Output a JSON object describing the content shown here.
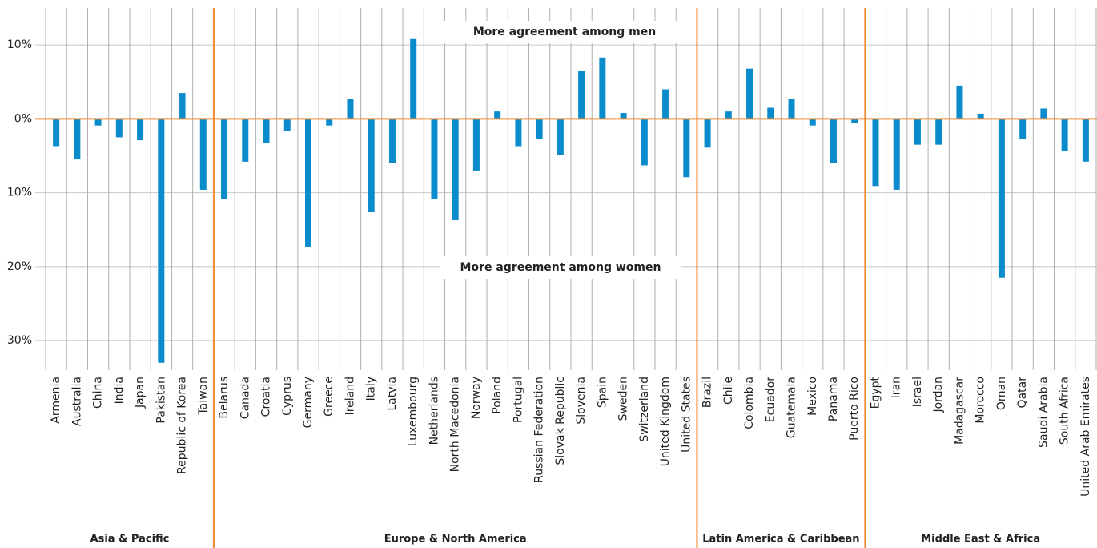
{
  "chart_data": {
    "type": "bar",
    "color": "#0a8ccc",
    "zero_line_color": "#f28a30",
    "ylim": [
      -34,
      15
    ],
    "yticks": [
      {
        "value": 10,
        "label": "10%"
      },
      {
        "value": 0,
        "label": "0%"
      },
      {
        "value": -10,
        "label": "10%"
      },
      {
        "value": -20,
        "label": "20%"
      },
      {
        "value": -30,
        "label": "30%"
      }
    ],
    "grid": true,
    "annotations": [
      "More agreement among men",
      "More agreement among women"
    ],
    "groups": [
      {
        "name": "Asia & Pacific",
        "categories": [
          "Armenia",
          "Australia",
          "China",
          "India",
          "Japan",
          "Pakistan",
          "Republic of Korea",
          "Taiwan"
        ],
        "values": [
          -3.7,
          -5.5,
          -0.9,
          -2.5,
          -2.9,
          -33,
          3.5,
          -9.6
        ]
      },
      {
        "name": "Europe & North America",
        "categories": [
          "Belarus",
          "Canada",
          "Croatia",
          "Cyprus",
          "Germany",
          "Greece",
          "Ireland",
          "Italy",
          "Latvia",
          "Luxembourg",
          "Netherlands",
          "North Macedonia",
          "Norway",
          "Poland",
          "Portugal",
          "Russian Federation",
          "Slovak Republic",
          "Slovenia",
          "Spain",
          "Sweden",
          "Switzerland",
          "United Kingdom",
          "United States"
        ],
        "values": [
          -10.8,
          -5.8,
          -3.3,
          -1.6,
          -17.3,
          -0.9,
          2.7,
          -12.6,
          -6,
          10.8,
          -10.8,
          -13.7,
          -7,
          1,
          -3.7,
          -2.7,
          -4.9,
          6.5,
          8.3,
          0.8,
          -6.3,
          4,
          -7.9
        ]
      },
      {
        "name": "Latin America & Caribbean",
        "categories": [
          "Brazil",
          "Chile",
          "Colombia",
          "Ecuador",
          "Guatemala",
          "Mexico",
          "Panama",
          "Puerto Rico"
        ],
        "values": [
          -3.9,
          1,
          6.8,
          1.5,
          2.7,
          -0.9,
          -6,
          -0.6
        ]
      },
      {
        "name": "Middle East & Africa",
        "categories": [
          "Egypt",
          "Iran",
          "Israel",
          "Jordan",
          "Madagascar",
          "Morocco",
          "Oman",
          "Qatar",
          "Saudi Arabia",
          "South Africa",
          "United Arab Emirates"
        ],
        "values": [
          -9.1,
          -9.6,
          -3.5,
          -3.5,
          4.5,
          0.7,
          -21.5,
          -2.7,
          1.4,
          -4.3,
          -5.8
        ]
      }
    ]
  }
}
